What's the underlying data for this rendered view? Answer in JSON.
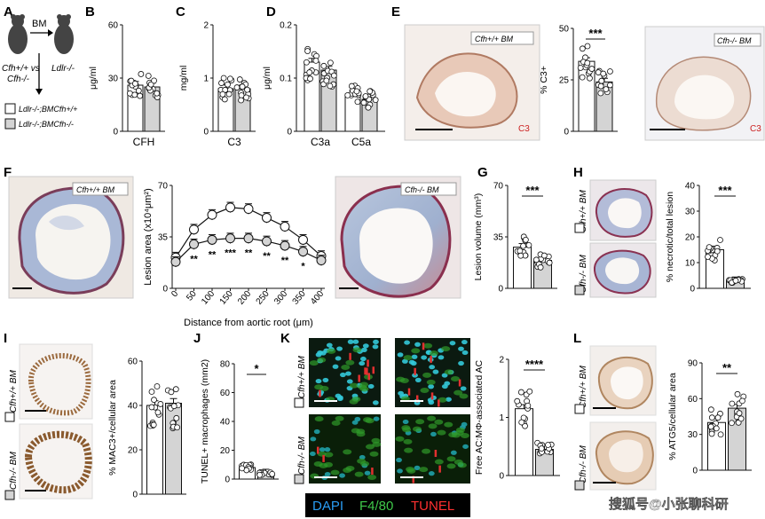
{
  "panels": {
    "A": {
      "letter": "A",
      "arrow_label": "BM",
      "donor_line1": "Cfh+/+ vs",
      "donor_line2": "Cfh-/-",
      "recipient": "Ldlr-/-",
      "legend": [
        "Ldlr-/-;BMCfh+/+",
        "Ldlr-/-;BMCfh-/-"
      ]
    },
    "B": {
      "letter": "B"
    },
    "C": {
      "letter": "C"
    },
    "D": {
      "letter": "D"
    },
    "E": {
      "letter": "E",
      "label_wt": "Cfh+/+ BM",
      "label_ko": "Cfh-/- BM",
      "stain": "C3"
    },
    "F": {
      "letter": "F",
      "label_wt": "Cfh+/+ BM",
      "label_ko": "Cfh-/- BM"
    },
    "G": {
      "letter": "G"
    },
    "H": {
      "letter": "H",
      "label_wt": "Cfh+/+ BM",
      "label_ko": "Cfh-/- BM"
    },
    "I": {
      "letter": "I",
      "label_wt": "Cfh+/+ BM",
      "label_ko": "Cfh-/- BM"
    },
    "J": {
      "letter": "J"
    },
    "K": {
      "letter": "K",
      "label_wt": "Cfh+/+ BM",
      "label_ko": "Cfh-/- BM",
      "legend": [
        {
          "text": "DAPI",
          "color": "#2a9df4"
        },
        {
          "text": "F4/80",
          "color": "#3fc84a"
        },
        {
          "text": "TUNEL",
          "color": "#ff3030"
        }
      ]
    },
    "L": {
      "letter": "L",
      "label_wt": "Cfh+/+ BM",
      "label_ko": "Cfh-/- BM"
    }
  },
  "watermark": "搜狐号@小张聊科研",
  "colors": {
    "wt": "#ffffff",
    "ko": "#d4d4d4",
    "stroke": "#111111"
  },
  "chart_data": [
    {
      "id": "B",
      "type": "bar",
      "ylabel": "μg/ml",
      "ylim": [
        0,
        60
      ],
      "yticks": [
        0,
        30,
        60
      ],
      "categories": [
        "CFH"
      ],
      "series": [
        {
          "values": [
            26
          ]
        },
        {
          "values": [
            25
          ]
        }
      ],
      "sig": ""
    },
    {
      "id": "C",
      "type": "bar",
      "ylabel": "mg/ml",
      "ylim": [
        0,
        2.0
      ],
      "yticks": [
        0,
        1.0,
        2.0
      ],
      "categories": [
        "C3"
      ],
      "series": [
        {
          "values": [
            0.8
          ]
        },
        {
          "values": [
            0.8
          ]
        }
      ],
      "sig": ""
    },
    {
      "id": "D",
      "type": "bar",
      "ylabel": "μg/ml",
      "ylim": [
        0,
        0.2
      ],
      "yticks": [
        0,
        0.1,
        0.2
      ],
      "categories": [
        "C3a",
        "C5a"
      ],
      "series": [
        {
          "values": [
            0.13,
            0.07
          ]
        },
        {
          "values": [
            0.115,
            0.06
          ]
        }
      ],
      "sig": ""
    },
    {
      "id": "E",
      "type": "bar",
      "ylabel": "% C3+",
      "ylim": [
        0,
        50
      ],
      "yticks": [
        0,
        25,
        50
      ],
      "categories": [
        ""
      ],
      "series": [
        {
          "values": [
            34
          ]
        },
        {
          "values": [
            24
          ]
        }
      ],
      "sig": "***"
    },
    {
      "id": "F",
      "type": "line",
      "ylabel": "Lesion area (x10⁴μm²)",
      "xlabel": "Distance from aortic root (μm)",
      "ylim": [
        0,
        70
      ],
      "yticks": [
        0,
        35,
        70
      ],
      "x": [
        0,
        50,
        100,
        150,
        200,
        250,
        300,
        350,
        400
      ],
      "series": [
        {
          "values": [
            21,
            40,
            50,
            55,
            54,
            48,
            42,
            33,
            22
          ]
        },
        {
          "values": [
            18,
            30,
            33,
            34,
            34,
            32,
            29,
            25,
            19
          ]
        }
      ],
      "stars": [
        "",
        "**",
        "**",
        "***",
        "**",
        "**",
        "**",
        "*",
        ""
      ]
    },
    {
      "id": "G",
      "type": "bar",
      "ylabel": "Lesion volume (mm³)",
      "ylim": [
        0,
        70
      ],
      "yticks": [
        0,
        35,
        70
      ],
      "categories": [
        ""
      ],
      "series": [
        {
          "values": [
            28
          ]
        },
        {
          "values": [
            19
          ]
        }
      ],
      "sig": "***"
    },
    {
      "id": "H",
      "type": "bar",
      "ylabel": "% necrotic/total lesion",
      "ylim": [
        0,
        40
      ],
      "yticks": [
        0,
        10,
        20,
        30,
        40
      ],
      "categories": [
        ""
      ],
      "series": [
        {
          "values": [
            15
          ]
        },
        {
          "values": [
            3
          ]
        }
      ],
      "sig": "***"
    },
    {
      "id": "I",
      "type": "bar",
      "ylabel": "% MAC3+/cellular area",
      "ylim": [
        0,
        60
      ],
      "yticks": [
        0,
        20,
        40,
        60
      ],
      "categories": [
        ""
      ],
      "series": [
        {
          "values": [
            40
          ]
        },
        {
          "values": [
            41
          ]
        }
      ],
      "sig": ""
    },
    {
      "id": "J",
      "type": "bar",
      "ylabel": "TUNEL+ macrophages (mm2)",
      "ylim": [
        0,
        80
      ],
      "yticks": [
        0,
        20,
        40,
        60,
        80
      ],
      "categories": [
        ""
      ],
      "series": [
        {
          "values": [
            8
          ]
        },
        {
          "values": [
            4
          ]
        }
      ],
      "sig": "*"
    },
    {
      "id": "K",
      "type": "bar",
      "ylabel": "Free AC:MΦ-associated AC",
      "ylim": [
        0,
        2
      ],
      "yticks": [
        0,
        1,
        2
      ],
      "categories": [
        ""
      ],
      "series": [
        {
          "values": [
            1.15
          ]
        },
        {
          "values": [
            0.45
          ]
        }
      ],
      "sig": "****"
    },
    {
      "id": "L",
      "type": "bar",
      "ylabel": "% ATG5/cellular area",
      "ylim": [
        0,
        90
      ],
      "yticks": [
        0,
        30,
        60,
        90
      ],
      "categories": [
        ""
      ],
      "series": [
        {
          "values": [
            40
          ]
        },
        {
          "values": [
            52
          ]
        }
      ],
      "sig": "**"
    }
  ]
}
